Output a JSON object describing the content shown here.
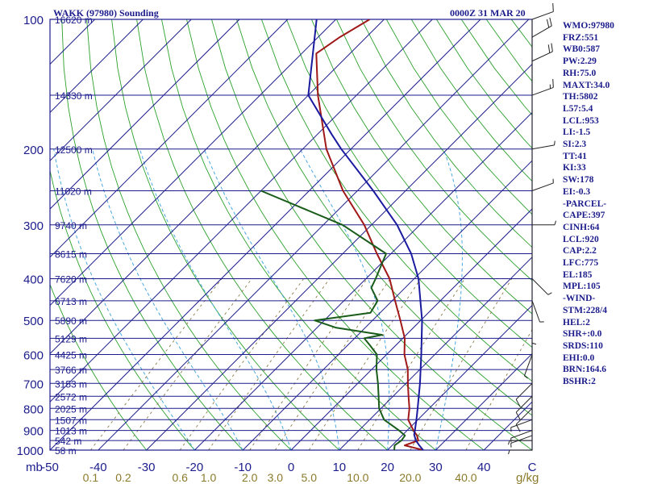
{
  "title_left": "WAKK (97980) Sounding",
  "title_right": "0000Z 31 MAR 20",
  "indices": [
    "WMO:97980",
    "FRZ:551",
    "WB0:587",
    "PW:2.29",
    "RH:75.0",
    "MAXT:34.0",
    "TH:5802",
    "L57:5.4",
    "LCL:953",
    "LI:-1.5",
    "SI:2.3",
    "TT:41",
    "KI:33",
    "SW:178",
    "EI:-0.3",
    "-PARCEL-",
    "CAPE:397",
    "CINH:64",
    "LCL:920",
    "CAP:2.2",
    "LFC:775",
    "EL:185",
    "MPL:105",
    "-WIND-",
    "STM:228/4",
    "HEL:2",
    "SHR+:0.0",
    "SRDS:110",
    "EHI:0.0",
    "BRN:164.6",
    "BSHR:2"
  ],
  "colors": {
    "axis": "#1c1c8c",
    "isobar": "#1c1c8c",
    "isotherm": "#1c1c8c",
    "dry_adiabat": "#2ca02c",
    "moist_adiabat": "#4aa8e0",
    "mixing_ratio": "#8a7a48",
    "temperature": "#a01818",
    "dewpoint": "#1a5c1a",
    "parcel": "#1a1aa0",
    "wind_barb": "#222222",
    "mixing_label": "#8a7a2a"
  },
  "chart_data": {
    "type": "line",
    "chart_kind": "skew-T log-P sounding",
    "pressure_range_mb": [
      1000,
      100
    ],
    "temperature_range_c": [
      -50,
      50
    ],
    "pressure_axis_label": "mb",
    "mixing_axis_label": "g/kg",
    "pressure_ticks": [
      "100",
      "200",
      "300",
      "400",
      "500",
      "600",
      "700",
      "800",
      "900",
      "1000"
    ],
    "temperature_ticks": [
      "-50",
      "-40",
      "-30",
      "-20",
      "-10",
      "0",
      "10",
      "20",
      "30",
      "40",
      "C"
    ],
    "mixing_ratio_ticks": [
      "0.1",
      "0.2",
      "0.6",
      "1.0",
      "2.0",
      "3.0",
      "5.0",
      "10.0",
      "20.0",
      "40.0"
    ],
    "height_labels": [
      {
        "p": 100,
        "text": "16620 m"
      },
      {
        "p": 150,
        "text": "14330 m"
      },
      {
        "p": 200,
        "text": "12500 m"
      },
      {
        "p": 250,
        "text": "11020 m"
      },
      {
        "p": 300,
        "text": "9740 m"
      },
      {
        "p": 350,
        "text": "8615 m"
      },
      {
        "p": 400,
        "text": "7620 m"
      },
      {
        "p": 450,
        "text": "6713 m"
      },
      {
        "p": 500,
        "text": "5890 m"
      },
      {
        "p": 550,
        "text": "5129 m"
      },
      {
        "p": 600,
        "text": "4425 m"
      },
      {
        "p": 650,
        "text": "3766 m"
      },
      {
        "p": 700,
        "text": "3153 m"
      },
      {
        "p": 750,
        "text": "2572 m"
      },
      {
        "p": 800,
        "text": "2025 m"
      },
      {
        "p": 850,
        "text": "1507 m"
      },
      {
        "p": 900,
        "text": "1013 m"
      },
      {
        "p": 950,
        "text": "542 m"
      },
      {
        "p": 1000,
        "text": "58 m"
      }
    ],
    "series": [
      {
        "name": "temperature",
        "points": [
          [
            1000,
            27.4
          ],
          [
            975,
            22.6
          ],
          [
            950,
            24.4
          ],
          [
            925,
            23.1
          ],
          [
            900,
            21.3
          ],
          [
            850,
            18.0
          ],
          [
            800,
            15.9
          ],
          [
            750,
            13.2
          ],
          [
            700,
            10.4
          ],
          [
            650,
            7.5
          ],
          [
            600,
            3.7
          ],
          [
            550,
            0.4
          ],
          [
            500,
            -4.2
          ],
          [
            450,
            -9.4
          ],
          [
            400,
            -15.1
          ],
          [
            350,
            -22.9
          ],
          [
            300,
            -31.5
          ],
          [
            250,
            -43.0
          ],
          [
            200,
            -55.1
          ],
          [
            150,
            -68.0
          ],
          [
            120,
            -77.0
          ],
          [
            110,
            -75.5
          ],
          [
            100,
            -73.0
          ]
        ]
      },
      {
        "name": "dewpoint",
        "points": [
          [
            1000,
            21.4
          ],
          [
            975,
            20.5
          ],
          [
            950,
            20.9
          ],
          [
            925,
            20.6
          ],
          [
            900,
            18.3
          ],
          [
            850,
            13.0
          ],
          [
            800,
            9.6
          ],
          [
            750,
            7.0
          ],
          [
            700,
            4.2
          ],
          [
            650,
            1.0
          ],
          [
            600,
            -2.0
          ],
          [
            570,
            -5.5
          ],
          [
            550,
            -8.0
          ],
          [
            540,
            -5.0
          ],
          [
            520,
            -16.0
          ],
          [
            500,
            -22.0
          ],
          [
            480,
            -12.0
          ],
          [
            450,
            -13.0
          ],
          [
            420,
            -17.0
          ],
          [
            400,
            -18.0
          ],
          [
            350,
            -21.0
          ],
          [
            300,
            -36.0
          ],
          [
            250,
            -60.0
          ]
        ]
      },
      {
        "name": "parcel",
        "points": [
          [
            1000,
            27.4
          ],
          [
            975,
            25.6
          ],
          [
            950,
            23.9
          ],
          [
            920,
            22.3
          ],
          [
            900,
            21.6
          ],
          [
            850,
            19.7
          ],
          [
            800,
            17.6
          ],
          [
            700,
            12.9
          ],
          [
            600,
            7.2
          ],
          [
            500,
            0.3
          ],
          [
            400,
            -9.1
          ],
          [
            350,
            -15.8
          ],
          [
            300,
            -24.7
          ],
          [
            250,
            -36.7
          ],
          [
            200,
            -52.0
          ],
          [
            185,
            -57.0
          ],
          [
            150,
            -70.0
          ],
          [
            100,
            -84.0
          ]
        ]
      }
    ],
    "wind_barbs": [
      {
        "p": 1000,
        "dir": 270,
        "spd": 5
      },
      {
        "p": 950,
        "dir": 270,
        "spd": 5
      },
      {
        "p": 925,
        "dir": 250,
        "spd": 5
      },
      {
        "p": 900,
        "dir": 250,
        "spd": 5
      },
      {
        "p": 850,
        "dir": 250,
        "spd": 5
      },
      {
        "p": 800,
        "dir": 225,
        "spd": 10
      },
      {
        "p": 750,
        "dir": 225,
        "spd": 10
      },
      {
        "p": 700,
        "dir": 225,
        "spd": 10
      },
      {
        "p": 600,
        "dir": 200,
        "spd": 5
      },
      {
        "p": 500,
        "dir": 180,
        "spd": 5
      },
      {
        "p": 450,
        "dir": 160,
        "spd": 5
      },
      {
        "p": 400,
        "dir": 135,
        "spd": 5
      },
      {
        "p": 300,
        "dir": 90,
        "spd": 5
      },
      {
        "p": 250,
        "dir": 70,
        "spd": 5
      },
      {
        "p": 200,
        "dir": 80,
        "spd": 5
      },
      {
        "p": 150,
        "dir": 70,
        "spd": 15
      },
      {
        "p": 125,
        "dir": 65,
        "spd": 20
      },
      {
        "p": 110,
        "dir": 60,
        "spd": 20
      },
      {
        "p": 100,
        "dir": 70,
        "spd": 10
      }
    ]
  }
}
